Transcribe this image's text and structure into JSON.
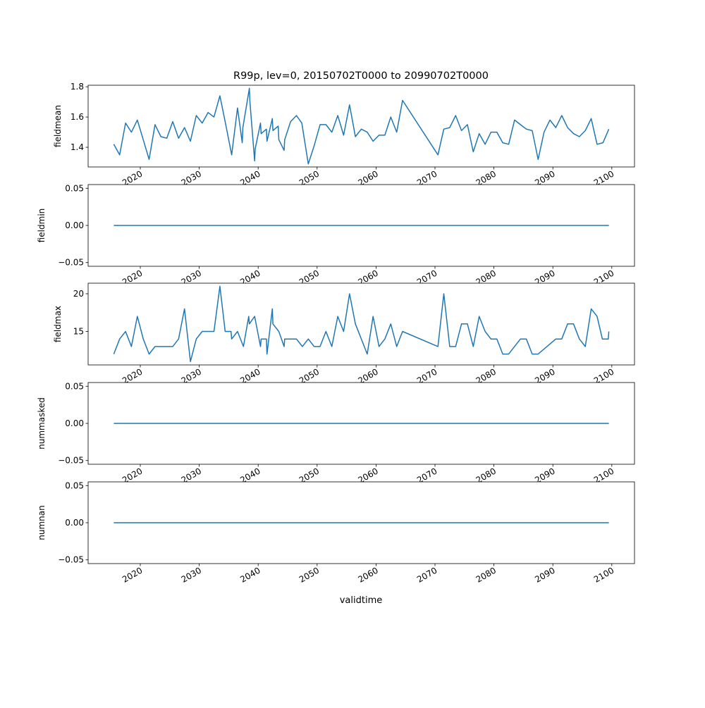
{
  "chart_data": {
    "type": "line",
    "title": "R99p, lev=0, 20150702T0000 to 20990702T0000",
    "xlabel": "validtime",
    "xlim": [
      2011.15,
      2103.85
    ],
    "xticks": [
      2020,
      2030,
      2040,
      2050,
      2060,
      2070,
      2080,
      2090,
      2100
    ],
    "xtick_labels": [
      "2020",
      "2030",
      "2040",
      "2050",
      "2060",
      "2070",
      "2080",
      "2090",
      "2100"
    ],
    "line_color": "#1f77b4",
    "grid": false,
    "panels": [
      {
        "ylabel": "fieldmean",
        "ylim": [
          1.27,
          1.81
        ],
        "yticks": [
          1.4,
          1.6,
          1.8
        ],
        "ytick_labels": [
          "1.4",
          "1.6",
          "1.8"
        ],
        "points": [
          [
            2015.5,
            1.42
          ],
          [
            2016.5,
            1.35
          ],
          [
            2017.5,
            1.56
          ],
          [
            2018.5,
            1.5
          ],
          [
            2019.5,
            1.58
          ],
          [
            2020.5,
            1.45
          ],
          [
            2021.5,
            1.32
          ],
          [
            2022.5,
            1.55
          ],
          [
            2023.5,
            1.47
          ],
          [
            2024.5,
            1.46
          ],
          [
            2025.5,
            1.57
          ],
          [
            2026.5,
            1.46
          ],
          [
            2027.5,
            1.53
          ],
          [
            2028.5,
            1.44
          ],
          [
            2029.5,
            1.61
          ],
          [
            2030.5,
            1.56
          ],
          [
            2031.5,
            1.63
          ],
          [
            2032.5,
            1.6
          ],
          [
            2033.5,
            1.74
          ],
          [
            2034.5,
            1.55
          ],
          [
            2035.5,
            1.35
          ],
          [
            2036.5,
            1.66
          ],
          [
            2037.3,
            1.43
          ],
          [
            2037.4,
            1.53
          ],
          [
            2038.5,
            1.79
          ],
          [
            2038.6,
            1.7
          ],
          [
            2039.4,
            1.31
          ],
          [
            2039.5,
            1.39
          ],
          [
            2040.4,
            1.56
          ],
          [
            2040.5,
            1.49
          ],
          [
            2041.4,
            1.52
          ],
          [
            2041.5,
            1.44
          ],
          [
            2042.4,
            1.59
          ],
          [
            2042.5,
            1.51
          ],
          [
            2043.4,
            1.54
          ],
          [
            2043.5,
            1.45
          ],
          [
            2044.4,
            1.38
          ],
          [
            2044.5,
            1.45
          ],
          [
            2045.5,
            1.57
          ],
          [
            2046.5,
            1.61
          ],
          [
            2047.4,
            1.56
          ],
          [
            2048.5,
            1.29
          ],
          [
            2049.5,
            1.41
          ],
          [
            2050.5,
            1.55
          ],
          [
            2051.5,
            1.55
          ],
          [
            2052.5,
            1.5
          ],
          [
            2053.5,
            1.61
          ],
          [
            2054.5,
            1.48
          ],
          [
            2055.5,
            1.68
          ],
          [
            2056.5,
            1.47
          ],
          [
            2057.5,
            1.52
          ],
          [
            2058.5,
            1.5
          ],
          [
            2059.5,
            1.44
          ],
          [
            2060.5,
            1.48
          ],
          [
            2061.5,
            1.48
          ],
          [
            2062.5,
            1.6
          ],
          [
            2063.5,
            1.5
          ],
          [
            2064.5,
            1.71
          ],
          [
            2070.5,
            1.35
          ],
          [
            2071.5,
            1.52
          ],
          [
            2072.5,
            1.53
          ],
          [
            2073.5,
            1.61
          ],
          [
            2074.5,
            1.51
          ],
          [
            2075.5,
            1.55
          ],
          [
            2076.5,
            1.37
          ],
          [
            2077.5,
            1.49
          ],
          [
            2078.5,
            1.42
          ],
          [
            2079.5,
            1.5
          ],
          [
            2080.5,
            1.5
          ],
          [
            2081.5,
            1.43
          ],
          [
            2082.5,
            1.42
          ],
          [
            2083.5,
            1.58
          ],
          [
            2084.5,
            1.55
          ],
          [
            2085.5,
            1.52
          ],
          [
            2086.5,
            1.51
          ],
          [
            2087.5,
            1.32
          ],
          [
            2088.5,
            1.5
          ],
          [
            2089.5,
            1.58
          ],
          [
            2090.5,
            1.53
          ],
          [
            2091.5,
            1.61
          ],
          [
            2092.5,
            1.53
          ],
          [
            2093.5,
            1.49
          ],
          [
            2094.5,
            1.47
          ],
          [
            2095.5,
            1.51
          ],
          [
            2096.5,
            1.59
          ],
          [
            2097.5,
            1.42
          ],
          [
            2098.5,
            1.43
          ],
          [
            2099.5,
            1.52
          ]
        ]
      },
      {
        "ylabel": "fieldmin",
        "ylim": [
          -0.055,
          0.055
        ],
        "yticks": [
          -0.05,
          0.0,
          0.05
        ],
        "ytick_labels": [
          "−0.05",
          "0.00",
          "0.05"
        ],
        "points": [
          [
            2015.5,
            0
          ],
          [
            2099.5,
            0
          ]
        ]
      },
      {
        "ylabel": "fieldmax",
        "ylim": [
          10.56,
          21.4
        ],
        "yticks": [
          15,
          20
        ],
        "ytick_labels": [
          "15",
          "20"
        ],
        "points": [
          [
            2015.5,
            12
          ],
          [
            2016.5,
            14
          ],
          [
            2017.5,
            15
          ],
          [
            2018.5,
            13
          ],
          [
            2019.5,
            17
          ],
          [
            2020.5,
            14
          ],
          [
            2021.5,
            12
          ],
          [
            2022.5,
            13
          ],
          [
            2025.5,
            13
          ],
          [
            2026.5,
            14
          ],
          [
            2027.5,
            18
          ],
          [
            2028.5,
            11
          ],
          [
            2029.5,
            14
          ],
          [
            2030.5,
            15
          ],
          [
            2032.5,
            15
          ],
          [
            2033.5,
            21
          ],
          [
            2034.4,
            15
          ],
          [
            2035.4,
            15
          ],
          [
            2035.5,
            14
          ],
          [
            2036.5,
            15
          ],
          [
            2037.5,
            13
          ],
          [
            2038.4,
            17
          ],
          [
            2038.5,
            16
          ],
          [
            2039.4,
            17
          ],
          [
            2040.4,
            13
          ],
          [
            2040.5,
            14
          ],
          [
            2041.4,
            14
          ],
          [
            2041.5,
            12
          ],
          [
            2042.4,
            18
          ],
          [
            2042.5,
            16
          ],
          [
            2043.5,
            15
          ],
          [
            2044.4,
            13
          ],
          [
            2044.5,
            14
          ],
          [
            2046.5,
            14
          ],
          [
            2047.5,
            13
          ],
          [
            2048.5,
            14
          ],
          [
            2049.5,
            13
          ],
          [
            2050.5,
            13
          ],
          [
            2051.5,
            15
          ],
          [
            2052.5,
            13
          ],
          [
            2053.5,
            17
          ],
          [
            2054.5,
            15
          ],
          [
            2055.5,
            20
          ],
          [
            2056.5,
            16
          ],
          [
            2058.5,
            12
          ],
          [
            2059.5,
            17
          ],
          [
            2060.5,
            13
          ],
          [
            2061.5,
            14
          ],
          [
            2062.5,
            16
          ],
          [
            2063.5,
            13
          ],
          [
            2064.5,
            15
          ],
          [
            2070.5,
            13
          ],
          [
            2071.5,
            20
          ],
          [
            2072.5,
            13
          ],
          [
            2073.5,
            13
          ],
          [
            2074.5,
            16
          ],
          [
            2075.5,
            16
          ],
          [
            2076.5,
            13
          ],
          [
            2077.5,
            17
          ],
          [
            2078.5,
            15
          ],
          [
            2079.5,
            14
          ],
          [
            2080.5,
            14
          ],
          [
            2081.5,
            12
          ],
          [
            2082.5,
            12
          ],
          [
            2084.5,
            14
          ],
          [
            2085.5,
            14
          ],
          [
            2086.5,
            12
          ],
          [
            2087.5,
            12
          ],
          [
            2090.5,
            14
          ],
          [
            2091.5,
            14
          ],
          [
            2092.5,
            16
          ],
          [
            2093.5,
            16
          ],
          [
            2094.5,
            14
          ],
          [
            2095.5,
            13
          ],
          [
            2096.5,
            18
          ],
          [
            2097.5,
            17
          ],
          [
            2098.4,
            14
          ],
          [
            2099.4,
            14
          ],
          [
            2099.5,
            15
          ]
        ]
      },
      {
        "ylabel": "nummasked",
        "ylim": [
          -0.055,
          0.055
        ],
        "yticks": [
          -0.05,
          0.0,
          0.05
        ],
        "ytick_labels": [
          "−0.05",
          "0.00",
          "0.05"
        ],
        "points": [
          [
            2015.5,
            0
          ],
          [
            2099.5,
            0
          ]
        ]
      },
      {
        "ylabel": "numnan",
        "ylim": [
          -0.055,
          0.055
        ],
        "yticks": [
          -0.05,
          0.0,
          0.05
        ],
        "ytick_labels": [
          "−0.05",
          "0.00",
          "0.05"
        ],
        "points": [
          [
            2015.5,
            0
          ],
          [
            2099.5,
            0
          ]
        ]
      }
    ]
  }
}
